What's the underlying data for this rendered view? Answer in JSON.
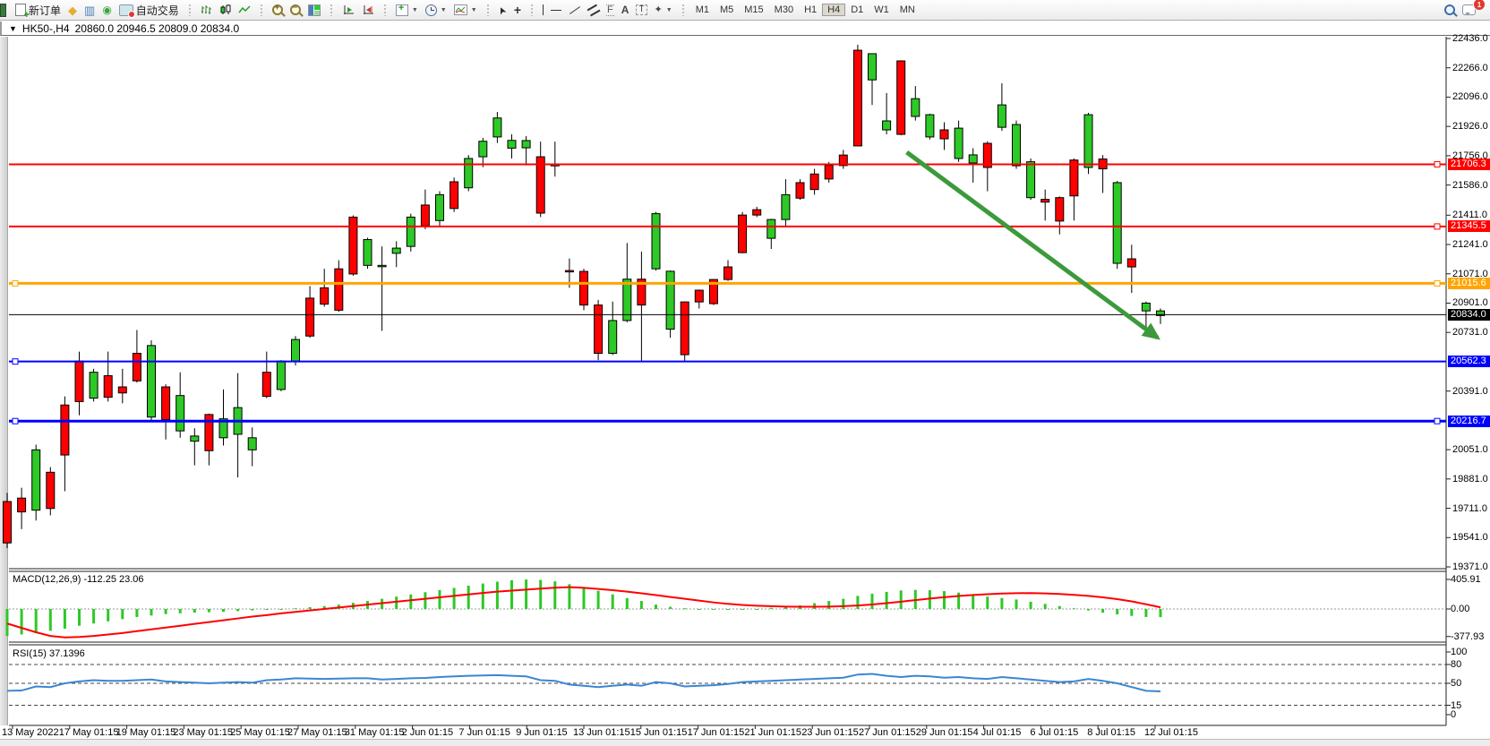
{
  "toolbar": {
    "new_order_label": "新订单",
    "autotrading_label": "自动交易",
    "timeframes": [
      "M1",
      "M5",
      "M15",
      "M30",
      "H1",
      "H4",
      "D1",
      "W1",
      "MN"
    ],
    "active_timeframe": "H4",
    "notification_badge": "1",
    "icons": {
      "gold_diamond": "◆",
      "window_chart": "▥",
      "signal": "◉",
      "cursor": "➤",
      "arrows": "✦",
      "text_a": "A",
      "text_label": "T",
      "fibonacci": "F",
      "crosshair": "+",
      "zoom_in_sign": "+",
      "zoom_out_sign": "−"
    }
  },
  "chart": {
    "title": {
      "collapse_icon": "▼",
      "symbol": "HK50-,H4",
      "ohlc": "20860.0 20946.5 20809.0 20834.0"
    },
    "price_axis_ticks": [
      22436,
      22266,
      22096,
      21926,
      21756,
      21586,
      21411,
      21241,
      21071,
      20901,
      20731,
      20391,
      20051,
      19881,
      19711,
      19541,
      19371
    ],
    "hlines": [
      {
        "label": "21706.3",
        "price": 21706.3,
        "color": "#ff0000",
        "lw": 2,
        "handles": [
          "right"
        ]
      },
      {
        "label": "21345.5",
        "price": 21345.5,
        "color": "#ff0000",
        "lw": 2,
        "handles": [
          "right"
        ]
      },
      {
        "label": "21015.6",
        "price": 21015.6,
        "color": "#ffa500",
        "lw": 3,
        "handles": [
          "left",
          "right"
        ]
      },
      {
        "label": "20562.3",
        "price": 20562.3,
        "color": "#0000ff",
        "lw": 2,
        "handles": [
          "left"
        ]
      },
      {
        "label": "20216.7",
        "price": 20216.7,
        "color": "#0000ff",
        "lw": 3,
        "handles": [
          "left",
          "right"
        ]
      }
    ],
    "current_price": {
      "label": "20834.0",
      "price": 20834.0,
      "color": "#000000"
    },
    "trend_arrow": {
      "color": "#3c9a3c",
      "from_bar": 62.4,
      "from_price": 21776,
      "to_bar": 79.8,
      "to_price": 20700
    },
    "macd_panel": {
      "label": "MACD(12,26,9) -112.25 23.06",
      "axis_labels": [
        "405.91",
        "0.00",
        "-377.93"
      ],
      "axis_values": [
        405.91,
        0,
        -377.93
      ]
    },
    "rsi_panel": {
      "label": "RSI(15) 37.1396",
      "axis_labels": [
        "100",
        "80",
        "50",
        "15",
        "0"
      ],
      "axis_values": [
        100,
        80,
        50,
        15,
        0
      ],
      "dashed_levels": [
        80,
        50,
        15
      ]
    }
  },
  "chart_data": {
    "type": "candlestick",
    "symbol": "HK50-",
    "period": "H4",
    "title": "HK50-,H4 20860.0 20946.5 20809.0 20834.0",
    "ylim": [
      19371,
      22436
    ],
    "x_labels": [
      "13 May 2022",
      "17 May 01:15",
      "19 May 01:15",
      "23 May 01:15",
      "25 May 01:15",
      "27 May 01:15",
      "31 May 01:15",
      "2 Jun 01:15",
      "7 Jun 01:15",
      "9 Jun 01:15",
      "13 Jun 01:15",
      "15 Jun 01:15",
      "17 Jun 01:15",
      "21 Jun 01:15",
      "23 Jun 01:15",
      "27 Jun 01:15",
      "29 Jun 01:15",
      "4 Jul 01:15",
      "6 Jul 01:15",
      "8 Jul 01:15",
      "12 Jul 01:15"
    ],
    "bars_per_label": 4,
    "colors": {
      "up": "#2dc926",
      "down": "#ff0000",
      "wick": "#000000",
      "macd_hist": "#2dc926",
      "macd_signal": "#ff0000",
      "rsi_line": "#3a87d2"
    },
    "candles_ohlc_approx": [
      [
        19750,
        19800,
        19480,
        19510
      ],
      [
        19770,
        19830,
        19590,
        19690
      ],
      [
        19700,
        20080,
        19640,
        20050
      ],
      [
        19920,
        19950,
        19670,
        19710
      ],
      [
        20310,
        20360,
        19810,
        20020
      ],
      [
        20565,
        20620,
        20250,
        20330
      ],
      [
        20350,
        20520,
        20330,
        20500
      ],
      [
        20480,
        20620,
        20330,
        20355
      ],
      [
        20415,
        20520,
        20320,
        20380
      ],
      [
        20610,
        20745,
        20440,
        20450
      ],
      [
        20240,
        20685,
        20220,
        20655
      ],
      [
        20415,
        20430,
        20110,
        20225
      ],
      [
        20160,
        20500,
        20120,
        20365
      ],
      [
        20100,
        20175,
        19960,
        20130
      ],
      [
        20255,
        20260,
        19960,
        20045
      ],
      [
        20120,
        20400,
        20075,
        20230
      ],
      [
        20140,
        20495,
        19890,
        20295
      ],
      [
        20050,
        20180,
        19955,
        20120
      ],
      [
        20500,
        20620,
        20350,
        20360
      ],
      [
        20400,
        20570,
        20390,
        20565
      ],
      [
        20565,
        20710,
        20540,
        20690
      ],
      [
        20930,
        21000,
        20700,
        20710
      ],
      [
        20990,
        21100,
        20880,
        20895
      ],
      [
        21100,
        21150,
        20850,
        20860
      ],
      [
        21400,
        21410,
        21060,
        21070
      ],
      [
        21120,
        21280,
        21100,
        21270
      ],
      [
        21115,
        21230,
        20740,
        21120
      ],
      [
        21190,
        21260,
        21110,
        21220
      ],
      [
        21230,
        21420,
        21200,
        21400
      ],
      [
        21470,
        21560,
        21330,
        21350
      ],
      [
        21380,
        21550,
        21350,
        21530
      ],
      [
        21605,
        21630,
        21430,
        21450
      ],
      [
        21570,
        21760,
        21550,
        21740
      ],
      [
        21750,
        21860,
        21690,
        21840
      ],
      [
        21865,
        22010,
        21830,
        21975
      ],
      [
        21800,
        21880,
        21740,
        21845
      ],
      [
        21802,
        21870,
        21700,
        21844
      ],
      [
        21750,
        21838,
        21400,
        21423
      ],
      [
        21700,
        21838,
        21635,
        21705
      ],
      [
        21090,
        21160,
        20990,
        21085
      ],
      [
        21085,
        21100,
        20860,
        20890
      ],
      [
        20890,
        20920,
        20570,
        20610
      ],
      [
        20610,
        20910,
        20600,
        20800
      ],
      [
        20800,
        21250,
        20790,
        21040
      ],
      [
        21040,
        21200,
        20565,
        20890
      ],
      [
        21100,
        21430,
        21090,
        21420
      ],
      [
        20750,
        21090,
        20700,
        21086
      ],
      [
        20908,
        20910,
        20560,
        20602
      ],
      [
        20976,
        20980,
        20870,
        20908
      ],
      [
        21038,
        21040,
        20890,
        20898
      ],
      [
        21111,
        21150,
        21030,
        21038
      ],
      [
        21412,
        21430,
        21190,
        21194
      ],
      [
        21443,
        21460,
        21400,
        21412
      ],
      [
        21277,
        21390,
        21215,
        21386
      ],
      [
        21386,
        21620,
        21350,
        21530
      ],
      [
        21600,
        21620,
        21500,
        21510
      ],
      [
        21650,
        21680,
        21530,
        21560
      ],
      [
        21700,
        21720,
        21600,
        21621
      ],
      [
        21760,
        21790,
        21680,
        21699
      ],
      [
        22368,
        22400,
        21810,
        21813
      ],
      [
        22196,
        22350,
        22050,
        22348
      ],
      [
        21906,
        22120,
        21880,
        21958
      ],
      [
        22306,
        22310,
        21875,
        21880
      ],
      [
        21984,
        22160,
        21960,
        22087
      ],
      [
        21865,
        22000,
        21850,
        21994
      ],
      [
        21906,
        21950,
        21790,
        21854
      ],
      [
        21740,
        21960,
        21720,
        21916
      ],
      [
        21714,
        21800,
        21600,
        21761
      ],
      [
        21828,
        21840,
        21550,
        21688
      ],
      [
        21921,
        22176,
        21900,
        22051
      ],
      [
        21698,
        21960,
        21680,
        21937
      ],
      [
        21513,
        21740,
        21500,
        21721
      ],
      [
        21503,
        21560,
        21380,
        21487
      ],
      [
        21513,
        21520,
        21300,
        21377
      ],
      [
        21731,
        21740,
        21380,
        21523
      ],
      [
        21688,
        22005,
        21650,
        21994
      ],
      [
        21737,
        21760,
        21540,
        21680
      ],
      [
        21132,
        21610,
        21100,
        21600
      ],
      [
        21158,
        21240,
        20960,
        21111
      ],
      [
        20856,
        20910,
        20760,
        20901
      ],
      [
        20829,
        20870,
        20780,
        20856
      ]
    ],
    "indicators": {
      "macd": {
        "params": "12,26,9",
        "current_histogram": -112.25,
        "current_signal": 23.06,
        "axis_range": [
          405.91,
          -377.93
        ],
        "histogram_approx": [
          -370,
          -350,
          -330,
          -300,
          -270,
          -230,
          -200,
          -170,
          -140,
          -110,
          -90,
          -70,
          -60,
          -50,
          -45,
          -40,
          -30,
          -20,
          -10,
          0,
          10,
          25,
          40,
          60,
          85,
          110,
          140,
          170,
          200,
          230,
          260,
          290,
          320,
          350,
          375,
          395,
          405,
          400,
          380,
          340,
          300,
          250,
          200,
          150,
          110,
          60,
          30,
          10,
          -5,
          -10,
          -10,
          -5,
          0,
          15,
          30,
          50,
          80,
          110,
          140,
          180,
          210,
          235,
          255,
          262,
          258,
          245,
          225,
          200,
          170,
          150,
          130,
          100,
          70,
          40,
          10,
          -20,
          -50,
          -75,
          -95,
          -110,
          -112
        ],
        "signal_approx": [
          -200,
          -260,
          -320,
          -370,
          -390,
          -385,
          -370,
          -350,
          -330,
          -305,
          -280,
          -255,
          -230,
          -205,
          -180,
          -155,
          -130,
          -105,
          -85,
          -60,
          -40,
          -20,
          0,
          20,
          40,
          60,
          80,
          100,
          120,
          140,
          160,
          180,
          200,
          220,
          238,
          252,
          266,
          280,
          292,
          300,
          290,
          275,
          258,
          238,
          215,
          190,
          165,
          140,
          115,
          90,
          70,
          55,
          45,
          38,
          33,
          30,
          30,
          32,
          38,
          48,
          62,
          80,
          100,
          122,
          143,
          162,
          178,
          192,
          203,
          212,
          217,
          218,
          214,
          206,
          194,
          180,
          160,
          135,
          105,
          65,
          23
        ]
      },
      "rsi": {
        "period": 15,
        "current": 37.1396,
        "levels": [
          80,
          50,
          15
        ],
        "values_approx": [
          38,
          38.5,
          45,
          44,
          50,
          53,
          55,
          54,
          54,
          55,
          56,
          53,
          52,
          51,
          50,
          51,
          52,
          51,
          55,
          56,
          58,
          57.5,
          57,
          57.5,
          58,
          58,
          56,
          57,
          58,
          58.5,
          60,
          61,
          62,
          62.5,
          63,
          62,
          61,
          55,
          54,
          48,
          46,
          44,
          46,
          48,
          46,
          52,
          50,
          45,
          46,
          47,
          49,
          52,
          53,
          54,
          55,
          56,
          57,
          58,
          59,
          64,
          65,
          62,
          60,
          62,
          61,
          59,
          60,
          58,
          57,
          60,
          58,
          56,
          54,
          52,
          53,
          57,
          54,
          50,
          44,
          38,
          37.1
        ]
      }
    }
  }
}
